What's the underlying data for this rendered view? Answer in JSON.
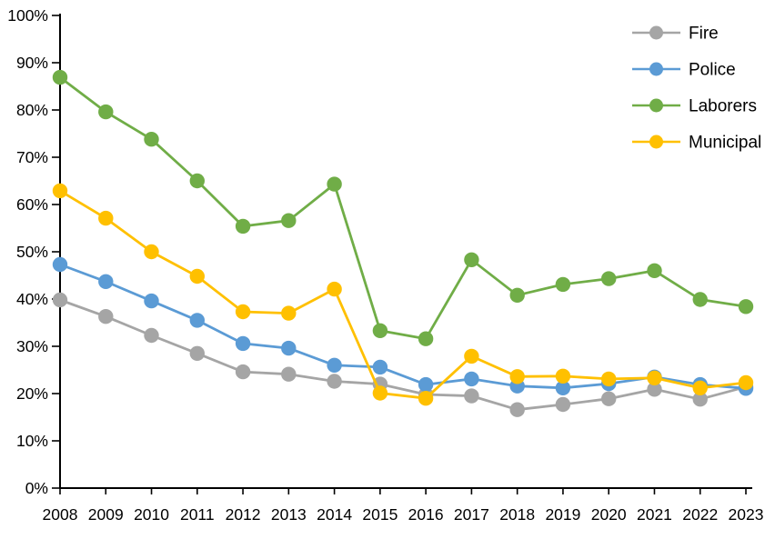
{
  "chart_data": {
    "type": "line",
    "title": "",
    "xlabel": "",
    "ylabel": "",
    "x": [
      "2008",
      "2009",
      "2010",
      "2011",
      "2012",
      "2013",
      "2014",
      "2015",
      "2016",
      "2017",
      "2018",
      "2019",
      "2020",
      "2021",
      "2022",
      "2023"
    ],
    "series": [
      {
        "name": "Fire",
        "color": "#A5A5A5",
        "values": [
          39.8,
          36.3,
          32.3,
          28.5,
          24.6,
          24.1,
          22.6,
          22.0,
          19.8,
          19.5,
          16.6,
          17.7,
          18.9,
          20.9,
          18.8,
          21.4
        ]
      },
      {
        "name": "Police",
        "color": "#5B9BD5",
        "values": [
          47.3,
          43.7,
          39.6,
          35.5,
          30.6,
          29.6,
          26.0,
          25.6,
          21.9,
          23.1,
          21.6,
          21.2,
          22.1,
          23.5,
          21.9,
          21.1
        ]
      },
      {
        "name": "Laborers",
        "color": "#70AD47",
        "values": [
          86.9,
          79.6,
          73.8,
          65.0,
          55.4,
          56.6,
          64.3,
          33.3,
          31.6,
          48.3,
          40.8,
          43.1,
          44.3,
          46.0,
          39.9,
          38.4
        ]
      },
      {
        "name": "Municipal",
        "color": "#FFC000",
        "values": [
          62.9,
          57.1,
          50.0,
          44.8,
          37.3,
          37.0,
          42.1,
          20.1,
          19.0,
          27.9,
          23.6,
          23.7,
          23.1,
          23.3,
          21.2,
          22.3
        ]
      }
    ],
    "ylim": [
      0,
      100
    ],
    "ytick_step": 10,
    "y_tick_labels": [
      "0%",
      "10%",
      "20%",
      "30%",
      "40%",
      "50%",
      "60%",
      "70%",
      "80%",
      "90%",
      "100%"
    ],
    "x_tick_labels": [
      "2008",
      "2009",
      "2010",
      "2011",
      "2012",
      "2013",
      "2014",
      "2015",
      "2016",
      "2017",
      "2018",
      "2019",
      "2020",
      "2021",
      "2022",
      "2023"
    ],
    "grid": false,
    "legend_position": "top-right",
    "legend_labels": [
      "Fire",
      "Police",
      "Laborers",
      "Municipal"
    ],
    "axis_color": "#000000",
    "background_color": "#FFFFFF"
  }
}
